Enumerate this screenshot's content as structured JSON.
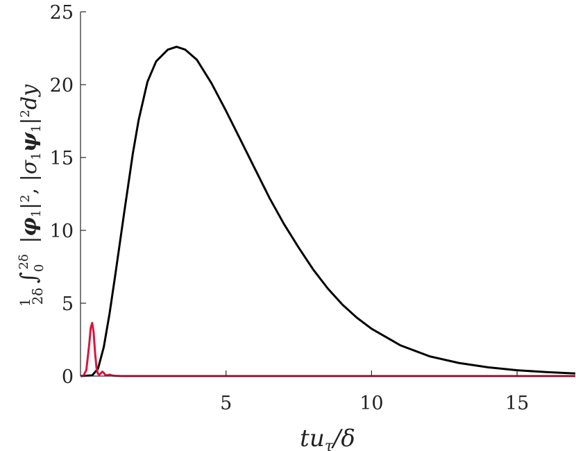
{
  "chart_data": {
    "type": "line",
    "title": "",
    "xlabel": "tu_τ/δ",
    "ylabel": "(1/2δ) ∫₀^{2δ} |φ₁|², |σ₁ψ₁|² dy",
    "xlim": [
      0,
      17
    ],
    "ylim": [
      0,
      25
    ],
    "xticks": [
      "5",
      "10",
      "15"
    ],
    "yticks": [
      "0",
      "5",
      "10",
      "15",
      "20",
      "25"
    ],
    "grid": false,
    "legend": "none",
    "series": [
      {
        "color": "#000000",
        "x": [
          0,
          0.4,
          0.6,
          0.8,
          1.0,
          1.2,
          1.5,
          1.8,
          2.0,
          2.3,
          2.6,
          3.0,
          3.3,
          3.6,
          4.0,
          4.5,
          5.0,
          5.5,
          6.0,
          6.5,
          7.0,
          7.5,
          8.0,
          8.5,
          9.0,
          9.5,
          10.0,
          11.0,
          12.0,
          13.0,
          14.0,
          15.0,
          16.0,
          17.0
        ],
        "y": [
          0,
          0.05,
          0.5,
          2.0,
          4.3,
          7.0,
          11.2,
          15.3,
          17.6,
          20.2,
          21.6,
          22.4,
          22.6,
          22.4,
          21.7,
          20.1,
          18.2,
          16.2,
          14.2,
          12.2,
          10.4,
          8.8,
          7.3,
          6.0,
          4.9,
          4.0,
          3.25,
          2.1,
          1.35,
          0.9,
          0.6,
          0.4,
          0.27,
          0.18
        ]
      },
      {
        "color": "#dc143c",
        "x": [
          0,
          0.1,
          0.2,
          0.3,
          0.35,
          0.4,
          0.45,
          0.5,
          0.55,
          0.6,
          0.65,
          0.7,
          0.75,
          0.8,
          0.85,
          0.9,
          1.0,
          1.1,
          1.2,
          1.4,
          17.0
        ],
        "y": [
          0,
          0.03,
          0.4,
          2.2,
          3.3,
          3.65,
          3.0,
          1.6,
          0.55,
          0.15,
          0.1,
          0.2,
          0.3,
          0.22,
          0.08,
          0.05,
          0.1,
          0.04,
          0.02,
          0,
          0
        ]
      }
    ]
  }
}
